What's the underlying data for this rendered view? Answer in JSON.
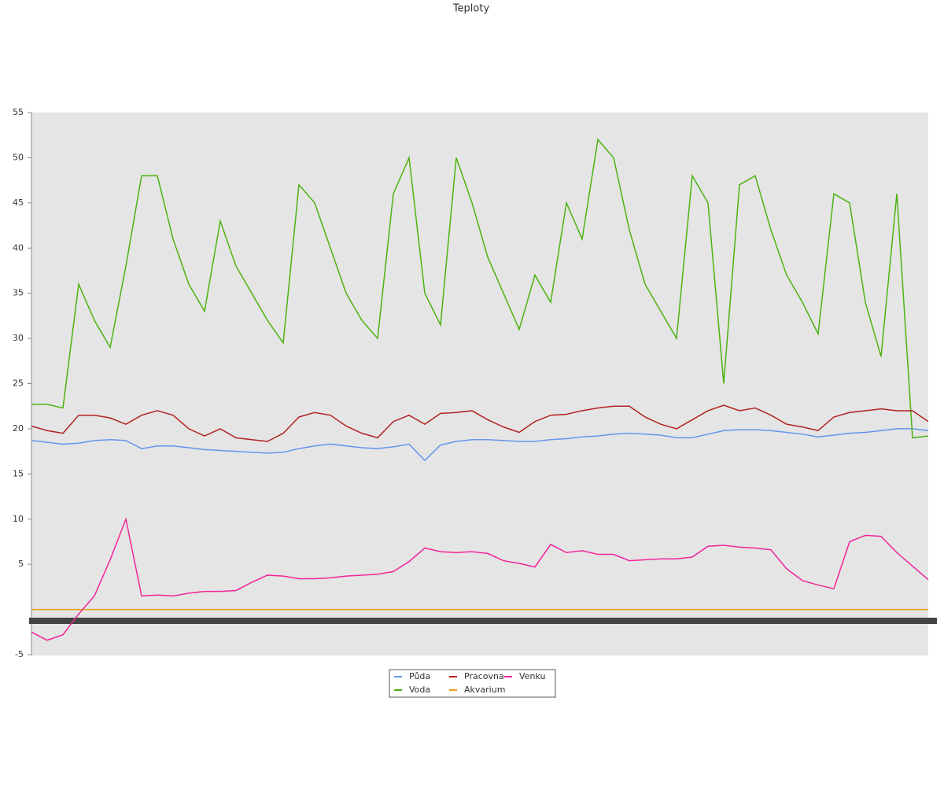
{
  "chart_data": {
    "type": "line",
    "title": "Teploty",
    "categories": [
      null,
      null,
      null,
      null,
      null,
      null,
      null,
      null,
      null,
      null,
      null,
      null,
      null,
      null,
      null,
      null,
      null,
      null,
      null,
      null,
      null,
      null,
      null,
      null,
      null,
      null,
      null,
      null,
      null,
      null,
      null,
      null,
      null,
      null,
      null,
      null,
      null,
      null,
      null,
      null,
      null,
      null,
      null,
      null,
      null,
      null,
      null,
      null,
      null,
      null,
      null,
      null,
      null,
      null,
      null,
      null,
      null,
      null
    ],
    "series": [
      {
        "name": "Půda",
        "color": "#6495ed",
        "values": [
          18.7,
          18.5,
          18.3,
          18.4,
          18.7,
          18.8,
          18.7,
          17.8,
          18.1,
          18.1,
          17.9,
          17.7,
          17.6,
          17.5,
          17.4,
          17.3,
          17.4,
          17.8,
          18.1,
          18.3,
          18.1,
          17.9,
          17.8,
          18,
          18.3,
          16.5,
          18.2,
          18.6,
          18.8,
          18.8,
          18.7,
          18.6,
          18.6,
          18.8,
          18.9,
          19.1,
          19.2,
          19.4,
          19.5,
          19.4,
          19.3,
          19,
          19,
          19.4,
          19.8,
          19.9,
          19.9,
          19.8,
          19.6,
          19.4,
          19.1,
          19.3,
          19.5,
          19.6,
          19.8,
          20,
          20,
          19.8
        ]
      },
      {
        "name": "Voda",
        "color": "#4cb30f",
        "values": [
          22.7,
          22.7,
          22.3,
          36,
          32,
          29,
          38,
          48,
          48,
          41,
          36,
          33,
          43,
          38,
          35,
          32,
          29.5,
          47,
          45,
          40,
          35,
          32,
          30,
          46,
          50,
          35,
          31.5,
          50,
          45,
          39,
          35,
          31,
          37,
          34,
          45,
          41,
          52,
          50,
          42,
          36,
          33,
          30,
          48,
          45,
          25,
          47,
          48,
          42,
          37,
          34,
          30.5,
          46,
          45,
          34,
          28,
          46,
          19,
          19.2
        ]
      },
      {
        "name": "Pracovna",
        "color": "#b22222",
        "values": [
          20.3,
          19.8,
          19.5,
          21.5,
          21.5,
          21.2,
          20.5,
          21.5,
          22,
          21.5,
          20,
          19.2,
          20,
          19,
          18.8,
          18.6,
          19.5,
          21.3,
          21.8,
          21.5,
          20.3,
          19.5,
          19,
          20.8,
          21.5,
          20.5,
          21.7,
          21.8,
          22,
          21,
          20.2,
          19.6,
          20.8,
          21.5,
          21.6,
          22,
          22.3,
          22.5,
          22.5,
          21.3,
          20.5,
          20,
          21,
          22,
          22.6,
          22,
          22.3,
          21.5,
          20.5,
          20.2,
          19.8,
          21.3,
          21.8,
          22,
          22.2,
          22,
          22,
          20.8
        ]
      },
      {
        "name": "Akvarium",
        "color": "#e69b1e",
        "values": [
          0,
          0,
          0,
          0,
          0,
          0,
          0,
          0,
          0,
          0,
          0,
          0,
          0,
          0,
          0,
          0,
          0,
          0,
          0,
          0,
          0,
          0,
          0,
          0,
          0,
          0,
          0,
          0,
          0,
          0,
          0,
          0,
          0,
          0,
          0,
          0,
          0,
          0,
          0,
          0,
          0,
          0,
          0,
          0,
          0,
          0,
          0,
          0,
          0,
          0,
          0,
          0,
          0,
          0,
          0,
          0,
          0,
          0
        ]
      },
      {
        "name": "Venku",
        "color": "#f0259a",
        "values": [
          -2.5,
          -3.4,
          -2.8,
          -0.5,
          1.5,
          5.5,
          10,
          1.5,
          1.6,
          1.5,
          1.8,
          2,
          2,
          2.1,
          3,
          3.8,
          3.7,
          3.4,
          3.4,
          3.5,
          3.7,
          3.8,
          3.9,
          4.2,
          5.3,
          6.8,
          6.4,
          6.3,
          6.4,
          6.2,
          5.4,
          5.1,
          4.7,
          7.2,
          6.3,
          6.5,
          6.1,
          6.1,
          5.4,
          5.5,
          5.6,
          5.6,
          5.8,
          7,
          7.1,
          6.9,
          6.8,
          6.6,
          4.5,
          3.2,
          2.7,
          2.3,
          7.5,
          8.2,
          8.1,
          6.3,
          4.8,
          3.3
        ]
      }
    ],
    "ylim": [
      -5,
      55
    ],
    "yticks": [
      -5,
      5,
      10,
      15,
      20,
      25,
      30,
      35,
      40,
      45,
      50,
      55
    ],
    "grid": false
  }
}
